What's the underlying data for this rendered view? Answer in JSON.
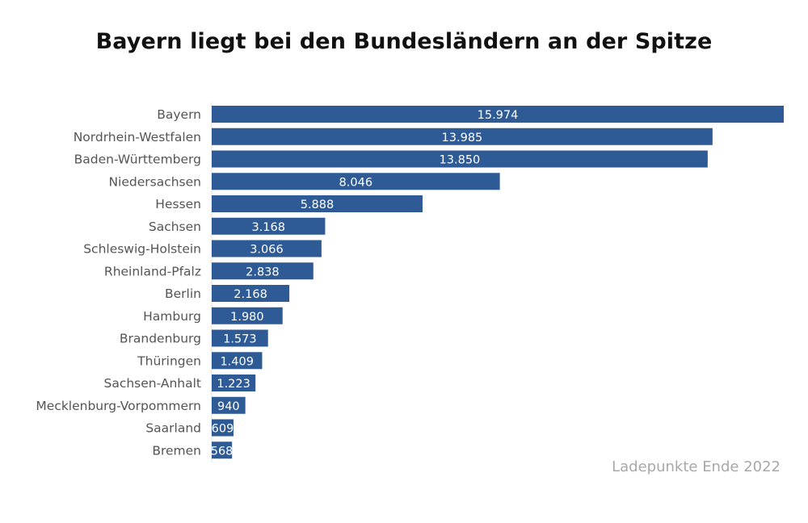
{
  "chart_data": {
    "type": "bar",
    "orientation": "horizontal",
    "title": "Bayern liegt bei den Bundesländern an der Spitze",
    "source_note": "Ladepunkte Ende 2022",
    "categories": [
      "Bayern",
      "Nordrhein-Westfalen",
      "Baden-Württemberg",
      "Niedersachsen",
      "Hessen",
      "Sachsen",
      "Schleswig-Holstein",
      "Rheinland-Pfalz",
      "Berlin",
      "Hamburg",
      "Brandenburg",
      "Thüringen",
      "Sachsen-Anhalt",
      "Mecklenburg-Vorpommern",
      "Saarland",
      "Bremen"
    ],
    "values": [
      15974,
      13985,
      13850,
      8046,
      5888,
      3168,
      3066,
      2838,
      2168,
      1980,
      1573,
      1409,
      1223,
      940,
      609,
      568
    ],
    "value_labels": [
      "15.974",
      "13.985",
      "13.850",
      "8.046",
      "5.888",
      "3.168",
      "3.066",
      "2.838",
      "2.168",
      "1.980",
      "1.573",
      "1.409",
      "1.223",
      "940",
      "609",
      "568"
    ],
    "xlim": [
      0,
      15974
    ],
    "bar_color": "#2e5b96",
    "grid": false,
    "legend": "none"
  }
}
